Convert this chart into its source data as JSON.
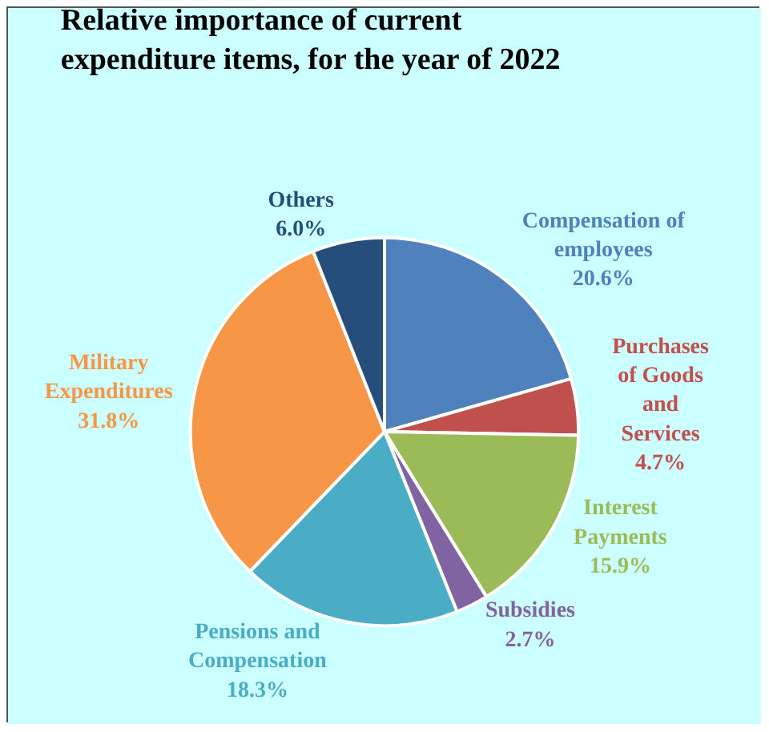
{
  "chart_data": {
    "type": "pie",
    "title": "Relative importance of current\nexpenditure items, for the year of 2022",
    "categories": [
      "Compensation of\nemployees",
      "Purchases\nof Goods\nand\nServices",
      "Interest\nPayments",
      "Subsidies",
      "Pensions and\nCompensation",
      "Military\nExpenditures",
      "Others"
    ],
    "values": [
      20.6,
      4.7,
      15.9,
      2.7,
      18.3,
      31.8,
      6.0
    ],
    "value_labels": [
      "20.6%",
      "4.7%",
      "15.9%",
      "2.7%",
      "18.3%",
      "31.8%",
      "6.0%"
    ],
    "colors": [
      "#4f81bd",
      "#c0504d",
      "#9bbb59",
      "#8064a2",
      "#4bacc6",
      "#f79646",
      "#254f7a"
    ],
    "legend": false
  }
}
